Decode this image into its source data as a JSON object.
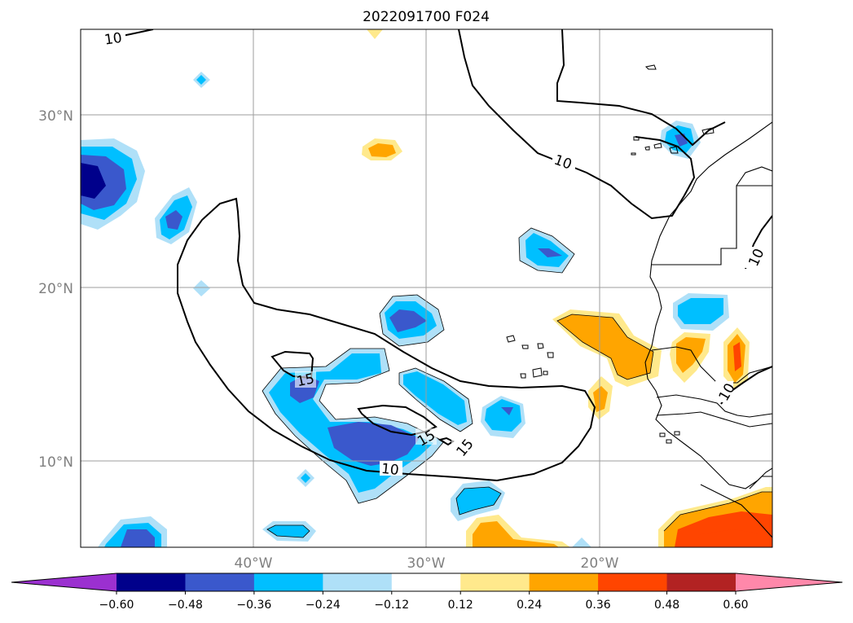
{
  "title": "2022091700 F024",
  "longitude_ticks": [
    "40°W",
    "30°W",
    "20°W"
  ],
  "latitude_ticks": [
    "30°N",
    "20°N",
    "10°N"
  ],
  "contour_levels": [
    "10",
    "15"
  ],
  "colorbar": {
    "tick_labels": [
      "−0.60",
      "−0.48",
      "−0.36",
      "−0.24",
      "−0.12",
      "0.12",
      "0.24",
      "0.36",
      "0.48",
      "0.60"
    ],
    "colors": [
      "#9b30d0",
      "#00008b",
      "#3a58cc",
      "#00bfff",
      "#afe0f8",
      "#ffffff",
      "#ffe98c",
      "#ffa500",
      "#ff4500",
      "#b22222",
      "#ff88aa"
    ]
  },
  "colors": {
    "gridline": "#9e9e9e",
    "tick_text": "#808080",
    "frame": "#000000"
  }
}
